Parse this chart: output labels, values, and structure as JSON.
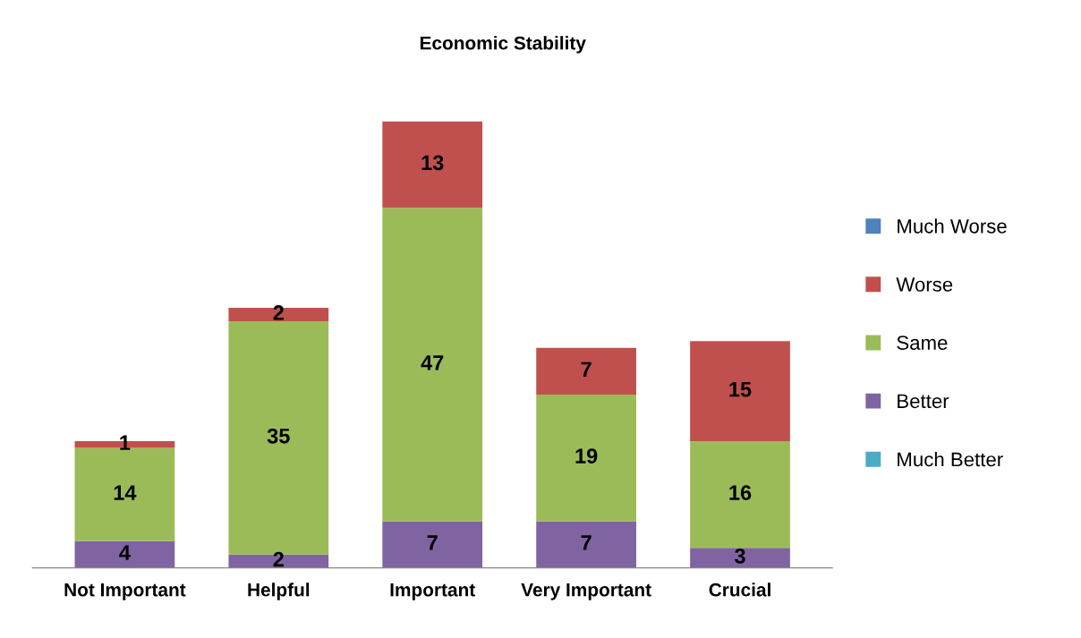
{
  "chart_data": {
    "type": "bar",
    "title": "Economic Stability",
    "stacked": true,
    "data_labels": true,
    "legend": "right",
    "grid": false,
    "tick_labels": "x",
    "categories": [
      "Not Important",
      "Helpful",
      "Important",
      "Very Important",
      "Crucial"
    ],
    "series": [
      {
        "name": "Much Better",
        "color": "#4bacc6",
        "values": [
          null,
          null,
          null,
          null,
          null
        ]
      },
      {
        "name": "Better",
        "color": "#8064a2",
        "values": [
          4,
          2,
          7,
          7,
          3
        ]
      },
      {
        "name": "Same",
        "color": "#9bbb59",
        "values": [
          14,
          35,
          47,
          19,
          16
        ]
      },
      {
        "name": "Worse",
        "color": "#c0504d",
        "values": [
          1,
          2,
          13,
          7,
          15
        ]
      },
      {
        "name": "Much Worse",
        "color": "#4f81bd",
        "values": [
          null,
          null,
          null,
          null,
          null
        ]
      }
    ]
  }
}
